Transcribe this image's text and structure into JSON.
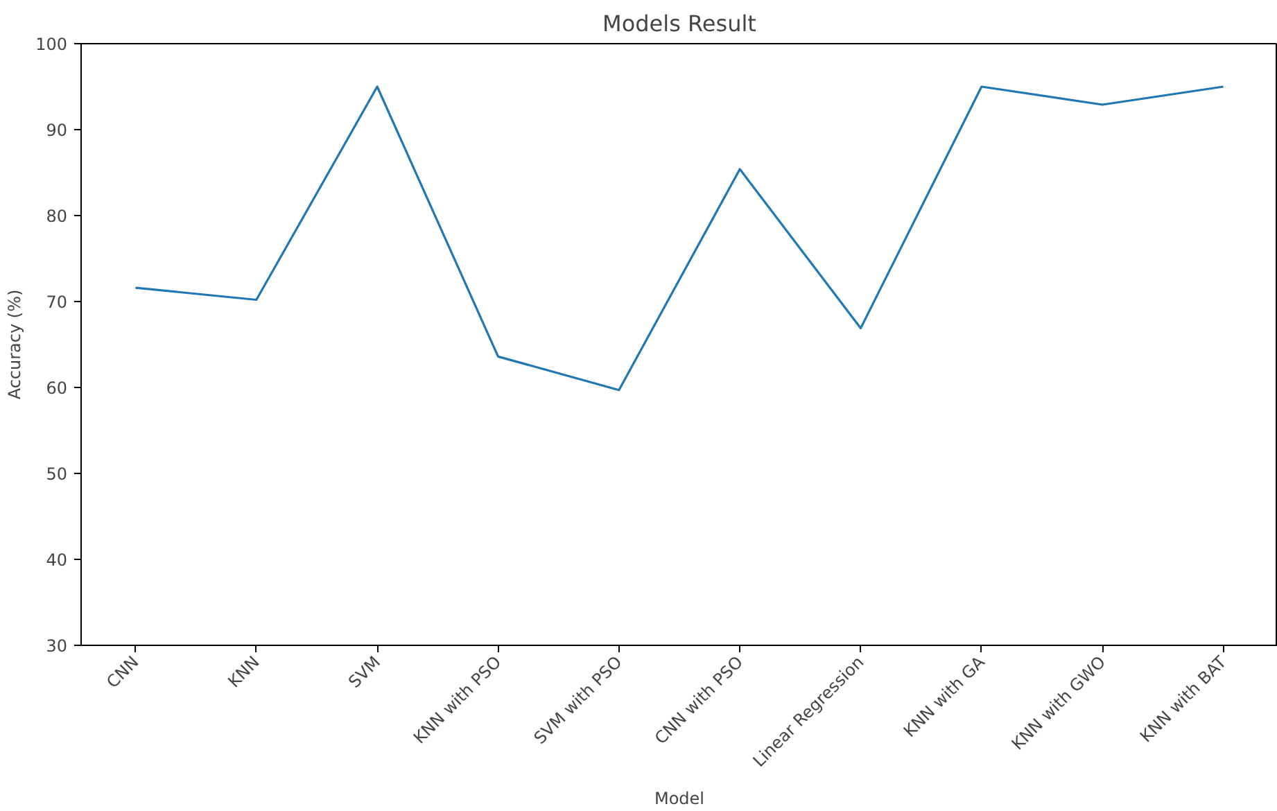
{
  "chart_data": {
    "type": "line",
    "title": "Models Result",
    "xlabel": "Model",
    "ylabel": "Accuracy (%)",
    "categories": [
      "CNN",
      "KNN",
      "SVM",
      "KNN with PSO",
      "SVM with PSO",
      "CNN with PSO",
      "Linear Regression",
      "KNN with GA",
      "KNN with GWO",
      "KNN with BAT"
    ],
    "series": [
      {
        "color": "#1f77b4",
        "values": [
          71.6,
          70.2,
          95.0,
          63.6,
          59.7,
          85.4,
          66.9,
          95.0,
          92.9,
          95.0
        ]
      }
    ],
    "ylim": [
      30,
      100
    ],
    "yticks": [
      30,
      40,
      50,
      60,
      70,
      80,
      90,
      100
    ],
    "grid": false,
    "marker": "none",
    "line_style": "solid"
  }
}
